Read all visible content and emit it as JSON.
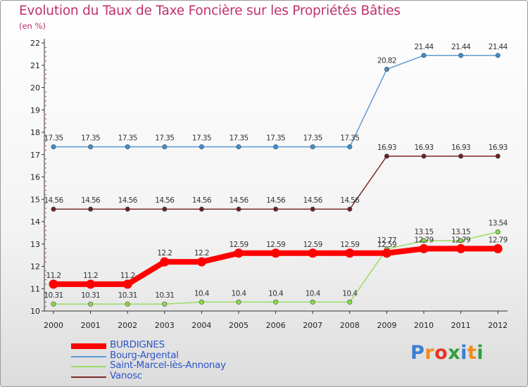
{
  "title": "Evolution du Taux de Taxe Foncière sur les Propriétés Bâties",
  "unit_label": "(en %)",
  "chart_data": {
    "type": "line",
    "title": "Evolution du Taux de Taxe Foncière sur les Propriétés Bâties",
    "ylabel": "(en %)",
    "xlabel": "",
    "categories": [
      "2000",
      "2001",
      "2002",
      "2003",
      "2004",
      "2005",
      "2006",
      "2007",
      "2008",
      "2009",
      "2010",
      "2011",
      "2012"
    ],
    "ylim": [
      10,
      22
    ],
    "yticks": [
      10,
      11,
      12,
      13,
      14,
      15,
      16,
      17,
      18,
      19,
      20,
      21,
      22
    ],
    "series": [
      {
        "name": "BURDIGNES",
        "color": "#ff0000",
        "values": [
          11.2,
          11.2,
          11.2,
          12.2,
          12.2,
          12.59,
          12.59,
          12.59,
          12.59,
          12.59,
          12.79,
          12.79,
          12.79
        ],
        "labels": [
          "11.2",
          "11.2",
          "11.2",
          "12.2",
          "12.2",
          "12.59",
          "12.59",
          "12.59",
          "12.59",
          "12.59",
          "12.79",
          "12.79",
          "12.79"
        ]
      },
      {
        "name": "Bourg-Argental",
        "color": "#5b9bd5",
        "values": [
          17.35,
          17.35,
          17.35,
          17.35,
          17.35,
          17.35,
          17.35,
          17.35,
          17.35,
          20.82,
          21.44,
          21.44,
          21.44
        ],
        "labels": [
          "17.35",
          "17.35",
          "17.35",
          "17.35",
          "17.35",
          "17.35",
          "17.35",
          "17.35",
          "17.35",
          "20.82",
          "21.44",
          "21.44",
          "21.44"
        ]
      },
      {
        "name": "Saint-Marcel-lès-Annonay",
        "color": "#99dd66",
        "values": [
          10.31,
          10.31,
          10.31,
          10.31,
          10.4,
          10.4,
          10.4,
          10.4,
          10.4,
          12.77,
          13.15,
          13.15,
          13.54
        ],
        "labels": [
          "10.31",
          "10.31",
          "10.31",
          "10.31",
          "10.4",
          "10.4",
          "10.4",
          "10.4",
          "10.4",
          "12.77",
          "13.15",
          "13.15",
          "13.54"
        ]
      },
      {
        "name": "Vanosc",
        "color": "#7a2a2a",
        "values": [
          14.56,
          14.56,
          14.56,
          14.56,
          14.56,
          14.56,
          14.56,
          14.56,
          14.56,
          16.93,
          16.93,
          16.93,
          16.93
        ],
        "labels": [
          "14.56",
          "14.56",
          "14.56",
          "14.56",
          "14.56",
          "14.56",
          "14.56",
          "14.56",
          "14.56",
          "16.93",
          "16.93",
          "16.93",
          "16.93"
        ]
      }
    ],
    "legend_position": "bottom-left",
    "grid": false
  },
  "legend": {
    "items": [
      {
        "label": "BURDIGNES",
        "color": "#ff0000"
      },
      {
        "label": "Bourg-Argental",
        "color": "#5b9bd5"
      },
      {
        "label": "Saint-Marcel-lès-Annonay",
        "color": "#99dd66"
      },
      {
        "label": "Vanosc",
        "color": "#7a2a2a"
      }
    ]
  },
  "logo": {
    "text": "Proxiti",
    "letters": [
      {
        "ch": "P",
        "color": "#3b7fd4"
      },
      {
        "ch": "r",
        "color": "#f28a1a"
      },
      {
        "ch": "o",
        "color": "#e8352b"
      },
      {
        "ch": "x",
        "color": "#2f9e3f"
      },
      {
        "ch": "i",
        "color": "#3b7fd4"
      },
      {
        "ch": "t",
        "color": "#f28a1a"
      },
      {
        "ch": "i",
        "color": "#2f9e3f"
      }
    ]
  }
}
